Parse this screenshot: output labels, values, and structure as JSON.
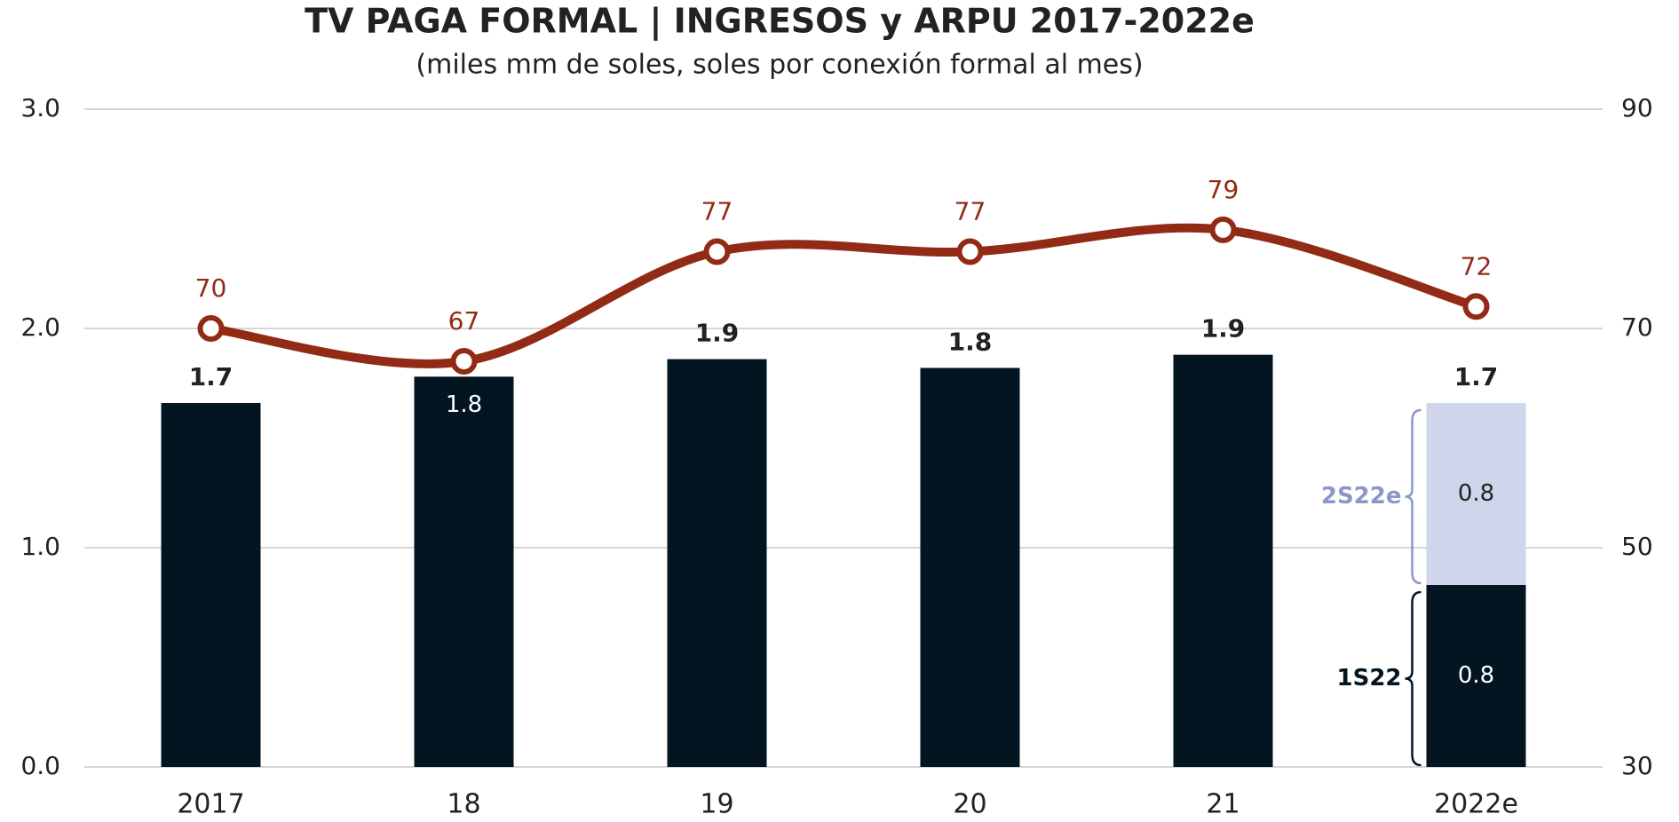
{
  "chart_data": {
    "type": "bar_line",
    "title": "TV PAGA FORMAL | INGRESOS y ARPU 2017-2022e",
    "subtitle": "(miles mm de soles, soles por conexión formal al mes)",
    "categories": [
      "2017",
      "18",
      "19",
      "20",
      "21",
      "2022e"
    ],
    "series": [
      {
        "name": "1S22",
        "color": "#021521",
        "values": [
          1.66,
          1.78,
          1.86,
          1.82,
          1.88,
          0.83
        ],
        "value_labels": [
          "1.7",
          "1.8",
          "1.9",
          "1.8",
          "1.9",
          "0.8"
        ]
      },
      {
        "name": "2S22e",
        "color": "#cfd5ea",
        "label_color": "#8b96c9",
        "values": [
          null,
          null,
          null,
          null,
          null,
          0.83
        ],
        "value_labels": [
          null,
          null,
          null,
          null,
          null,
          "0.8"
        ]
      },
      {
        "type": "line",
        "axis": "y2",
        "color": "#922b15",
        "values": [
          70,
          67,
          77,
          77,
          79,
          72
        ]
      }
    ],
    "totals": [
      null,
      null,
      null,
      null,
      null,
      1.66
    ],
    "total_labels": [
      null,
      null,
      null,
      null,
      null,
      "1.7"
    ],
    "ylim": [
      0,
      3
    ],
    "yticks": [
      {
        "value": 0,
        "label": "0.0"
      },
      {
        "value": 1,
        "label": "1.0"
      },
      {
        "value": 2,
        "label": "2.0"
      },
      {
        "value": 3,
        "label": "3.0"
      }
    ],
    "y2lim": [
      30,
      90
    ],
    "y2ticks": [
      30,
      50,
      70,
      90
    ],
    "grid": true
  }
}
